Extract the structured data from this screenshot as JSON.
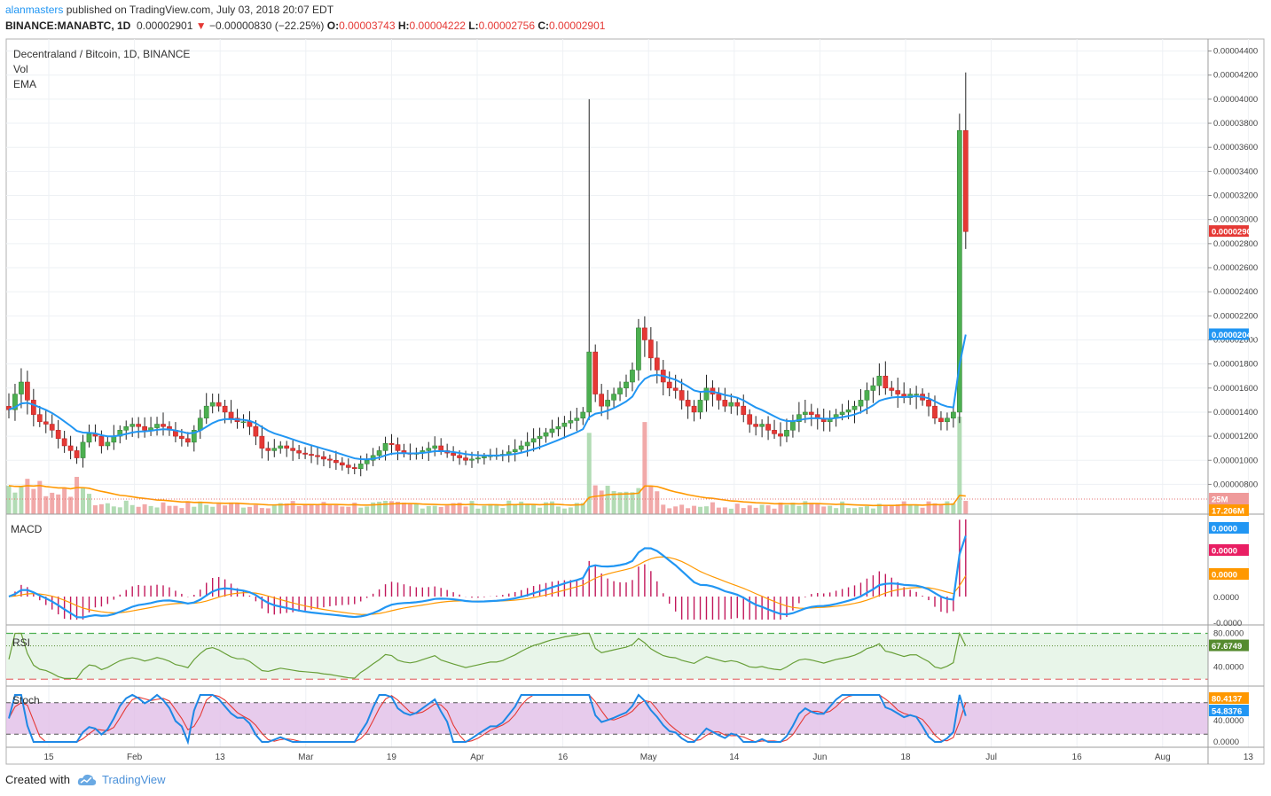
{
  "header": {
    "publisher": "alanmasters",
    "published_text": "published on TradingView.com, July 03, 2018 20:07 EDT",
    "symbol": "BINANCE:MANABTC, 1D",
    "last": "0.00002901",
    "change": "−0.00000830 (−22.25%)",
    "o_label": "O:",
    "o_value": "0.00003743",
    "h_label": "H:",
    "h_value": "0.00004222",
    "l_label": "L:",
    "l_value": "0.00002756",
    "c_label": "C:",
    "c_value": "0.00002901"
  },
  "legend": {
    "title": "Decentraland / Bitcoin, 1D, BINANCE",
    "vol": "Vol",
    "ema": "EMA"
  },
  "price_axis": [
    "0.00004400",
    "0.00004200",
    "0.00004000",
    "0.00003800",
    "0.00003600",
    "0.00003400",
    "0.00003200",
    "0.00003000",
    "0.00002800",
    "0.00002600",
    "0.00002400",
    "0.00002200",
    "0.00002000",
    "0.00001800",
    "0.00001600",
    "0.00001400",
    "0.00001200",
    "0.00001000",
    "0.00000800"
  ],
  "price_badges": {
    "last": "0.00002901",
    "ema": "0.00002044",
    "vol": "25M",
    "vol_ma": "17.206M"
  },
  "macd": {
    "label": "MACD",
    "axis": [
      "0.0000",
      "0.0000",
      "-0.0000"
    ],
    "badges": [
      "0.0000",
      "0.0000",
      "0.0000"
    ]
  },
  "rsi": {
    "label": "RSI",
    "axis": [
      "80.0000",
      "40.0000"
    ],
    "badge": "67.6749"
  },
  "stoch": {
    "label": "Stoch",
    "axis": [
      "80.0000",
      "40.0000",
      "0.0000"
    ],
    "badges": [
      "80.4137",
      "54.8376"
    ]
  },
  "time_axis": [
    "15",
    "Feb",
    "13",
    "Mar",
    "19",
    "Apr",
    "16",
    "May",
    "14",
    "Jun",
    "18",
    "Jul",
    "16",
    "Aug",
    "13"
  ],
  "footer": {
    "created_with": "Created with",
    "brand": "TradingView"
  },
  "colors": {
    "up": "#4caf50",
    "down": "#e53935",
    "ema": "#2196f3",
    "vol_ma": "#ff9800",
    "macd_signal": "#ff9800",
    "macd_hist": "#c2185b",
    "rsi_line": "#689f38",
    "stoch_k": "#1e88e5",
    "stoch_d": "#e53935",
    "stoch_band": "#e1bee7",
    "rsi_band": "#e8f5e9"
  },
  "chart_data": {
    "type": "candlestick",
    "title": "Decentraland / Bitcoin, 1D, BINANCE",
    "ylim": [
      7e-06,
      4.5e-05
    ],
    "first_day": "2018-01-07",
    "close": [
      1.42e-05,
      1.55e-05,
      1.65e-05,
      1.5e-05,
      1.38e-05,
      1.32e-05,
      1.3e-05,
      1.25e-05,
      1.18e-05,
      1.12e-05,
      1.08e-05,
      1.02e-05,
      1.15e-05,
      1.22e-05,
      1.2e-05,
      1.12e-05,
      1.15e-05,
      1.2e-05,
      1.25e-05,
      1.28e-05,
      1.3e-05,
      1.28e-05,
      1.25e-05,
      1.27e-05,
      1.3e-05,
      1.28e-05,
      1.25e-05,
      1.2e-05,
      1.18e-05,
      1.15e-05,
      1.25e-05,
      1.35e-05,
      1.45e-05,
      1.48e-05,
      1.45e-05,
      1.4e-05,
      1.35e-05,
      1.32e-05,
      1.32e-05,
      1.28e-05,
      1.2e-05,
      1.1e-05,
      1.08e-05,
      1.1e-05,
      1.12e-05,
      1.1e-05,
      1.08e-05,
      1.06e-05,
      1.05e-05,
      1.04e-05,
      1.03e-05,
      1.01e-05,
      1e-05,
      9.8e-06,
      9.6e-06,
      9.4e-06,
      9.3e-06,
      9.7e-06,
      1e-05,
      1.04e-05,
      1.08e-05,
      1.14e-05,
      1.13e-05,
      1.08e-05,
      1.06e-05,
      1.05e-05,
      1.06e-05,
      1.08e-05,
      1.1e-05,
      1.12e-05,
      1.08e-05,
      1.06e-05,
      1.04e-05,
      1.02e-05,
      1e-05,
      1.01e-05,
      1.02e-05,
      1.03e-05,
      1.04e-05,
      1.04e-05,
      1.05e-05,
      1.07e-05,
      1.09e-05,
      1.12e-05,
      1.15e-05,
      1.18e-05,
      1.2e-05,
      1.23e-05,
      1.26e-05,
      1.28e-05,
      1.31e-05,
      1.33e-05,
      1.35e-05,
      1.4e-05,
      1.9e-05,
      1.55e-05,
      1.45e-05,
      1.5e-05,
      1.55e-05,
      1.6e-05,
      1.65e-05,
      1.75e-05,
      2.1e-05,
      2e-05,
      1.85e-05,
      1.75e-05,
      1.65e-05,
      1.6e-05,
      1.58e-05,
      1.5e-05,
      1.45e-05,
      1.4e-05,
      1.5e-05,
      1.6e-05,
      1.55e-05,
      1.5e-05,
      1.45e-05,
      1.48e-05,
      1.45e-05,
      1.38e-05,
      1.3e-05,
      1.28e-05,
      1.3e-05,
      1.25e-05,
      1.22e-05,
      1.2e-05,
      1.25e-05,
      1.32e-05,
      1.38e-05,
      1.4e-05,
      1.38e-05,
      1.35e-05,
      1.32e-05,
      1.35e-05,
      1.38e-05,
      1.4e-05,
      1.42e-05,
      1.45e-05,
      1.5e-05,
      1.58e-05,
      1.62e-05,
      1.7e-05,
      1.6e-05,
      1.58e-05,
      1.55e-05,
      1.52e-05,
      1.55e-05,
      1.55e-05,
      1.5e-05,
      1.45e-05,
      1.35e-05,
      1.32e-05,
      1.35e-05,
      1.4e-05,
      3.74e-05,
      2.9e-05
    ],
    "ema": "blue EMA line following price, ends at 0.00002044",
    "last": 2.901e-05,
    "rsi_last": 67.6749,
    "stoch_last": [
      80.4137,
      54.8376
    ]
  }
}
